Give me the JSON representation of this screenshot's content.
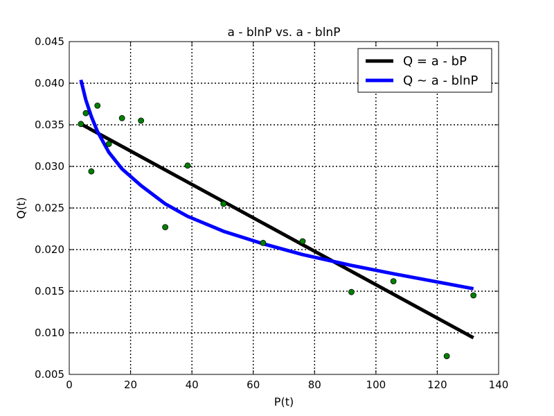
{
  "chart_data": {
    "type": "line",
    "title": "a - blnP vs. a - blnP",
    "xlabel": "P(t)",
    "ylabel": "Q(t)",
    "xlim": [
      0,
      140
    ],
    "ylim": [
      0.005,
      0.045
    ],
    "x_ticks": [
      0,
      20,
      40,
      60,
      80,
      100,
      120,
      140
    ],
    "y_ticks": [
      0.005,
      0.01,
      0.015,
      0.02,
      0.025,
      0.03,
      0.035,
      0.04,
      0.045
    ],
    "x_tick_labels": [
      "0",
      "20",
      "40",
      "60",
      "80",
      "100",
      "120",
      "140"
    ],
    "y_tick_labels": [
      "0.005",
      "0.010",
      "0.015",
      "0.020",
      "0.025",
      "0.030",
      "0.035",
      "0.040",
      "0.045"
    ],
    "grid": true,
    "legend_position": "top-right",
    "scatter": {
      "color": "#008000",
      "points": [
        [
          3.8,
          0.0351
        ],
        [
          5.4,
          0.0364
        ],
        [
          7.2,
          0.0294
        ],
        [
          9.2,
          0.0373
        ],
        [
          12.9,
          0.0327
        ],
        [
          17.2,
          0.0358
        ],
        [
          23.4,
          0.0355
        ],
        [
          31.3,
          0.0227
        ],
        [
          38.6,
          0.0301
        ],
        [
          50.3,
          0.0255
        ],
        [
          63.2,
          0.0208
        ],
        [
          76.1,
          0.021
        ],
        [
          92.0,
          0.0149
        ],
        [
          105.7,
          0.0162
        ],
        [
          123.1,
          0.0072
        ],
        [
          131.8,
          0.0145
        ]
      ]
    },
    "series": [
      {
        "name": "Q = a - bP",
        "color": "#000000",
        "x": [
          3.8,
          131.8
        ],
        "y": [
          0.0351,
          0.0094
        ]
      },
      {
        "name": "Q ~ a - blnP",
        "color": "#0000ff",
        "x": [
          3.8,
          5.4,
          7.2,
          9.2,
          12.9,
          17.2,
          23.4,
          31.3,
          38.6,
          50.3,
          63.2,
          76.1,
          92.0,
          105.7,
          123.1,
          131.8
        ],
        "y": [
          0.0404,
          0.038,
          0.036,
          0.0342,
          0.0317,
          0.0297,
          0.0277,
          0.0255,
          0.024,
          0.0222,
          0.0207,
          0.0194,
          0.0181,
          0.0171,
          0.0159,
          0.0153
        ]
      }
    ]
  }
}
